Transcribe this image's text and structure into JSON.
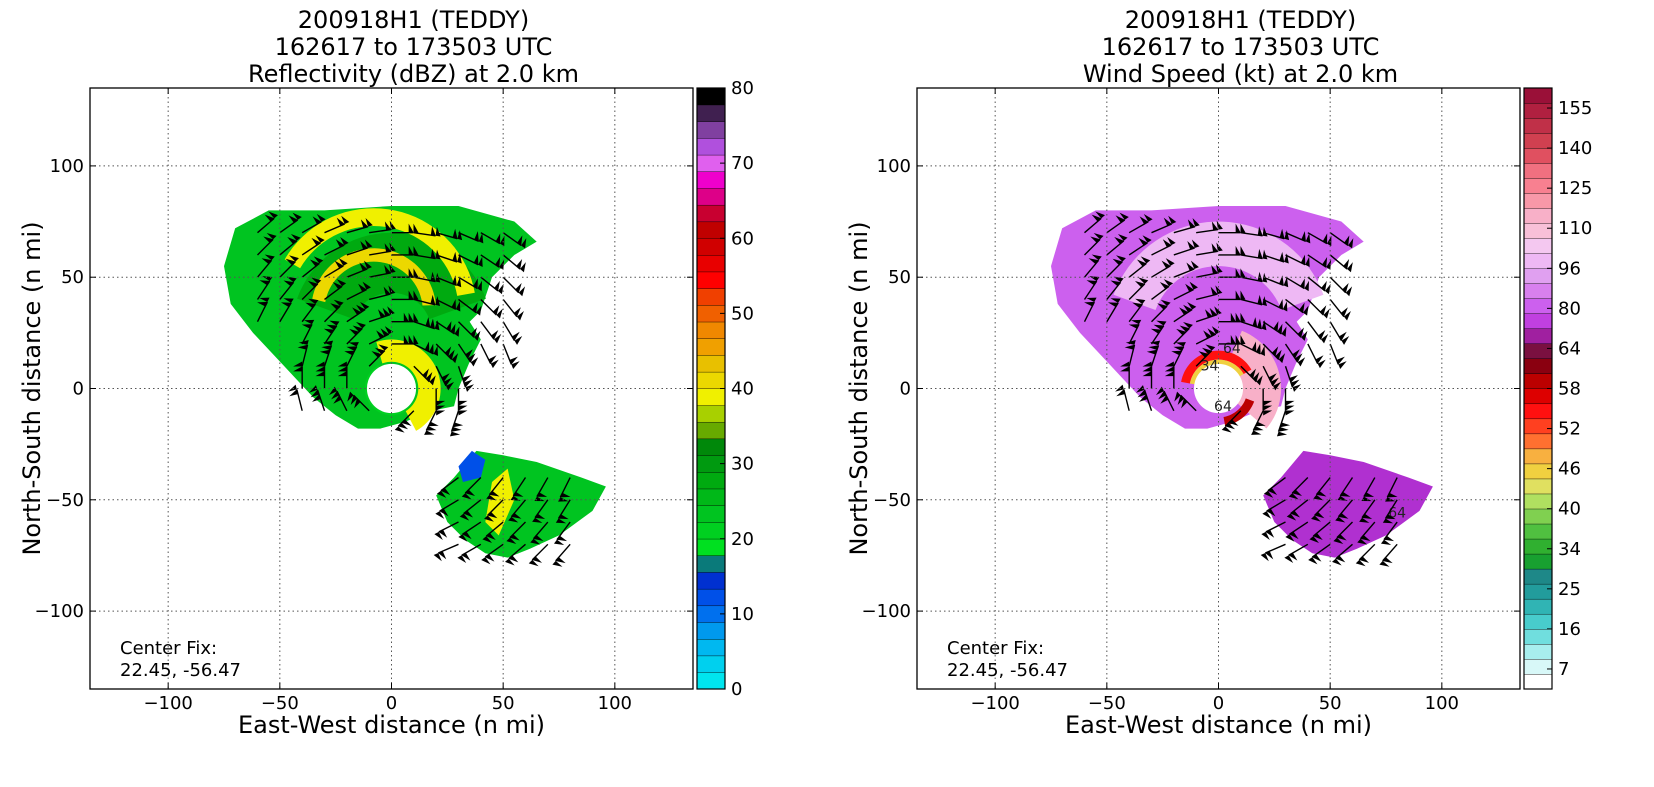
{
  "chart_data": [
    {
      "type": "heatmap",
      "title_lines": [
        "200918H1 (TEDDY)",
        "162617 to 173503 UTC",
        "Reflectivity (dBZ) at 2.0 km"
      ],
      "xlabel": "East-West distance (n mi)",
      "ylabel": "North-South distance (n mi)",
      "xlim": [
        -135,
        135
      ],
      "ylim": [
        -135,
        135
      ],
      "xticks": [
        -100,
        -50,
        0,
        50,
        100
      ],
      "yticks": [
        -100,
        -50,
        0,
        50,
        100
      ],
      "grid": true,
      "annotation": [
        "Center Fix:",
        "22.45, -56.47"
      ],
      "colorbar": {
        "min": 0,
        "max": 80,
        "tick_labels": [
          "0",
          "10",
          "20",
          "30",
          "40",
          "50",
          "60",
          "70",
          "80"
        ],
        "tick_values": [
          0,
          10,
          20,
          30,
          40,
          50,
          60,
          70,
          80
        ],
        "colors": [
          "#00e5ee",
          "#00d0ee",
          "#00b8f0",
          "#0099ee",
          "#0070ee",
          "#0050e8",
          "#0030d0",
          "#0a7a7a",
          "#00e020",
          "#00d020",
          "#00c420",
          "#00b818",
          "#00aa10",
          "#009a10",
          "#00880a",
          "#67aa00",
          "#a8d000",
          "#f0f000",
          "#ecd800",
          "#e8c000",
          "#f0a000",
          "#f08800",
          "#f06000",
          "#f04000",
          "#ff0000",
          "#e80000",
          "#d00000",
          "#c00000",
          "#c80030",
          "#dd0088",
          "#ee00cc",
          "#e060ee",
          "#b050dd",
          "#8040a0",
          "#402050",
          "#000000"
        ]
      },
      "vortex_center": [
        0,
        0
      ],
      "echo_regions": [
        "main spiral band north and west of center",
        "eyewall ring around center",
        "outer rainband southeast of center"
      ],
      "barb_color": "#000000"
    },
    {
      "type": "heatmap",
      "title_lines": [
        "200918H1 (TEDDY)",
        "162617 to 173503 UTC",
        "Wind Speed (kt) at 2.0 km"
      ],
      "xlabel": "East-West distance (n mi)",
      "ylabel": "North-South distance (n mi)",
      "xlim": [
        -135,
        135
      ],
      "ylim": [
        -135,
        135
      ],
      "xticks": [
        -100,
        -50,
        0,
        50,
        100
      ],
      "yticks": [
        -100,
        -50,
        0,
        50,
        100
      ],
      "grid": true,
      "annotation": [
        "Center Fix:",
        "22.45, -56.47"
      ],
      "colorbar": {
        "min": 7,
        "max": 160,
        "tick_labels": [
          "7",
          "16",
          "25",
          "34",
          "40",
          "46",
          "52",
          "58",
          "64",
          "80",
          "96",
          "110",
          "125",
          "140",
          "155"
        ],
        "colors": [
          "#ffffff",
          "#d8f8f8",
          "#a8eeee",
          "#70dede",
          "#48cccc",
          "#30b4b4",
          "#229c9c",
          "#1e8888",
          "#18a030",
          "#30b030",
          "#50c040",
          "#80d050",
          "#b0e060",
          "#e0e060",
          "#f0d040",
          "#f8b040",
          "#ff7030",
          "#ff4020",
          "#ff1010",
          "#dd0000",
          "#bb0000",
          "#8a0010",
          "#7a1040",
          "#a020a0",
          "#c040e0",
          "#cc60ee",
          "#d880ee",
          "#e0a0f0",
          "#eeb8f4",
          "#f4c8f0",
          "#f8c0d8",
          "#f8b0c8",
          "#f898a8",
          "#f88090",
          "#f07080",
          "#e05060",
          "#d04050",
          "#c03048",
          "#b02040",
          "#9a1038"
        ]
      },
      "contour_labels": [
        "34",
        "64",
        "64",
        "64"
      ],
      "vortex_center": [
        0,
        0
      ],
      "barb_color": "#000000"
    }
  ]
}
